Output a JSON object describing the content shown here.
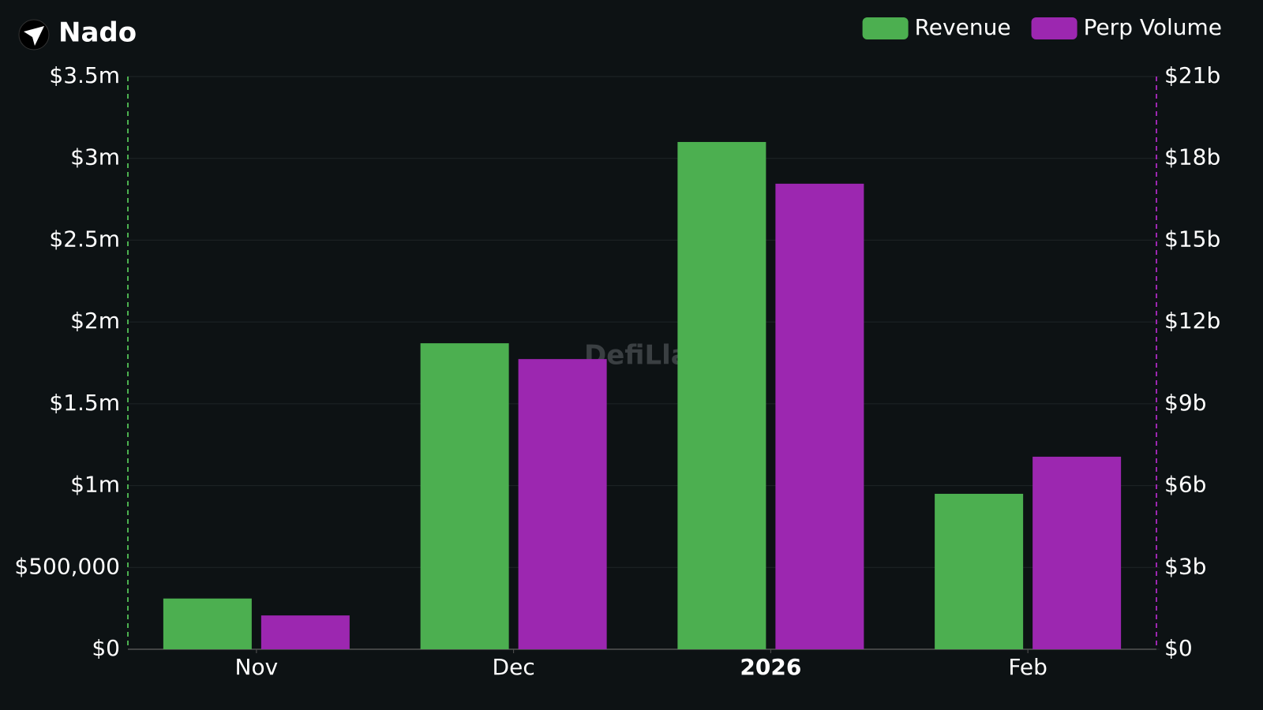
{
  "chart_data": {
    "type": "bar",
    "title": "Nado",
    "watermark": "DefiLlama",
    "categories": [
      "Nov",
      "Dec",
      "2026",
      "Feb"
    ],
    "series": [
      {
        "name": "Revenue",
        "color": "#4caf50",
        "axis": "y",
        "values": [
          310000,
          1870000,
          3100000,
          950000
        ]
      },
      {
        "name": "Perp Volume",
        "color": "#9c27b0",
        "axis": "y2",
        "values": [
          1240000000,
          10640000000,
          17070000000,
          7060000000
        ]
      }
    ],
    "ylim": [
      0,
      3500000
    ],
    "yticks": [
      {
        "value": 0,
        "label": "$0"
      },
      {
        "value": 500000,
        "label": "$500,000"
      },
      {
        "value": 1000000,
        "label": "$1m"
      },
      {
        "value": 1500000,
        "label": "$1.5m"
      },
      {
        "value": 2000000,
        "label": "$2m"
      },
      {
        "value": 2500000,
        "label": "$2.5m"
      },
      {
        "value": 3000000,
        "label": "$3m"
      },
      {
        "value": 3500000,
        "label": "$3.5m"
      }
    ],
    "y2lim": [
      0,
      21000000000
    ],
    "y2ticks": [
      {
        "value": 0,
        "label": "$0"
      },
      {
        "value": 3000000000,
        "label": "$3b"
      },
      {
        "value": 6000000000,
        "label": "$6b"
      },
      {
        "value": 9000000000,
        "label": "$9b"
      },
      {
        "value": 12000000000,
        "label": "$12b"
      },
      {
        "value": 15000000000,
        "label": "$15b"
      },
      {
        "value": 18000000000,
        "label": "$18b"
      },
      {
        "value": 21000000000,
        "label": "$21b"
      }
    ],
    "grid": true,
    "legend": "top-right"
  }
}
